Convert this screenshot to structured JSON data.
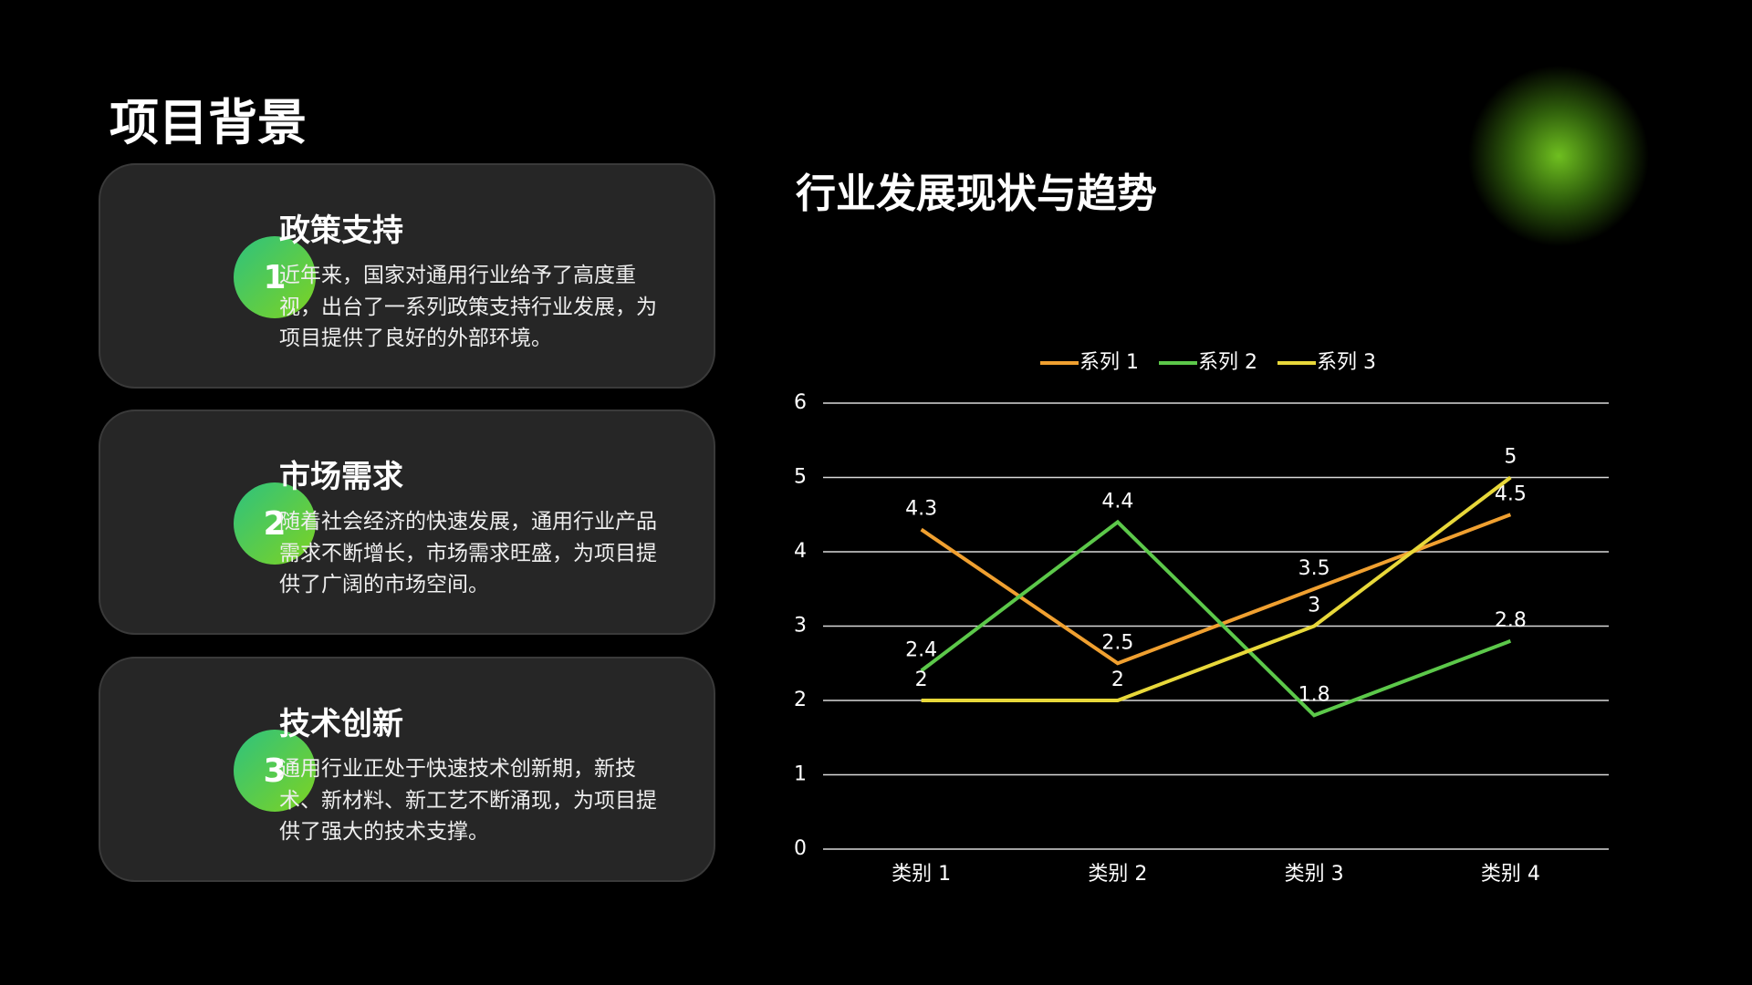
{
  "title": "项目背景",
  "cards": [
    {
      "number": "1",
      "title": "政策支持",
      "body": "近年来，国家对通用行业给予了高度重视，出台了一系列政策支持行业发展，为项目提供了良好的外部环境。"
    },
    {
      "number": "2",
      "title": "市场需求",
      "body": "随着社会经济的快速发展，通用行业产品需求不断增长，市场需求旺盛，为项目提供了广阔的市场空间。"
    },
    {
      "number": "3",
      "title": "技术创新",
      "body": "通用行业正处于快速技术创新期，新技术、新材料、新工艺不断涌现，为项目提供了强大的技术支撑。"
    }
  ],
  "chart_data": {
    "type": "line",
    "title": "行业发展现状与趋势",
    "categories": [
      "类别 1",
      "类别 2",
      "类别 3",
      "类别 4"
    ],
    "series": [
      {
        "name": "系列 1",
        "color": "#f0a030",
        "values": [
          4.3,
          2.5,
          3.5,
          4.5
        ]
      },
      {
        "name": "系列 2",
        "color": "#5cc84a",
        "values": [
          2.4,
          4.4,
          1.8,
          2.8
        ]
      },
      {
        "name": "系列 3",
        "color": "#e8d83a",
        "values": [
          2,
          2,
          3,
          5
        ]
      }
    ],
    "ylim": [
      0,
      6
    ],
    "yticks": [
      0,
      1,
      2,
      3,
      4,
      5,
      6
    ],
    "grid": true,
    "legend": "top"
  }
}
